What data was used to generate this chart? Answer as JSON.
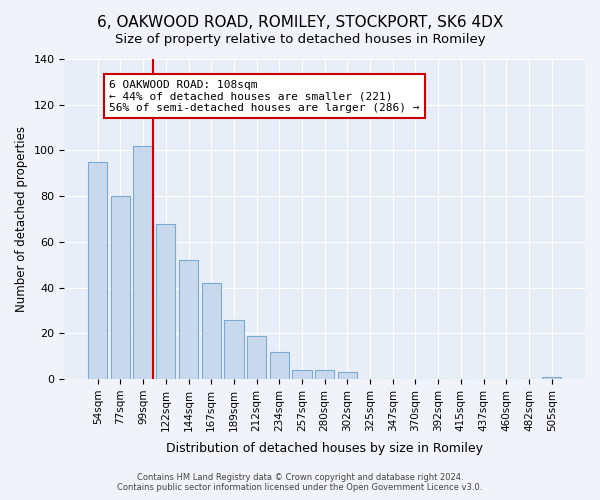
{
  "title": "6, OAKWOOD ROAD, ROMILEY, STOCKPORT, SK6 4DX",
  "subtitle": "Size of property relative to detached houses in Romiley",
  "xlabel": "Distribution of detached houses by size in Romiley",
  "ylabel": "Number of detached properties",
  "bar_labels": [
    "54sqm",
    "77sqm",
    "99sqm",
    "122sqm",
    "144sqm",
    "167sqm",
    "189sqm",
    "212sqm",
    "234sqm",
    "257sqm",
    "280sqm",
    "302sqm",
    "325sqm",
    "347sqm",
    "370sqm",
    "392sqm",
    "415sqm",
    "437sqm",
    "460sqm",
    "482sqm",
    "505sqm"
  ],
  "bar_values": [
    95,
    80,
    102,
    68,
    52,
    42,
    26,
    19,
    12,
    4,
    4,
    3,
    0,
    0,
    0,
    0,
    0,
    0,
    0,
    0,
    1
  ],
  "bar_color": "#c8d9ee",
  "bar_edge_color": "#7aaad0",
  "vline_x": 2.43,
  "vline_color": "#cc0000",
  "annotation_title": "6 OAKWOOD ROAD: 108sqm",
  "annotation_line1": "← 44% of detached houses are smaller (221)",
  "annotation_line2": "56% of semi-detached houses are larger (286) →",
  "annotation_box_color": "#cc0000",
  "ylim": [
    0,
    140
  ],
  "yticks": [
    0,
    20,
    40,
    60,
    80,
    100,
    120,
    140
  ],
  "footer1": "Contains HM Land Registry data © Crown copyright and database right 2024.",
  "footer2": "Contains public sector information licensed under the Open Government Licence v3.0.",
  "background_color": "#f0f4fa",
  "plot_background": "#e8eef8",
  "grid_color": "#ffffff",
  "title_fontsize": 11,
  "subtitle_fontsize": 9.5
}
